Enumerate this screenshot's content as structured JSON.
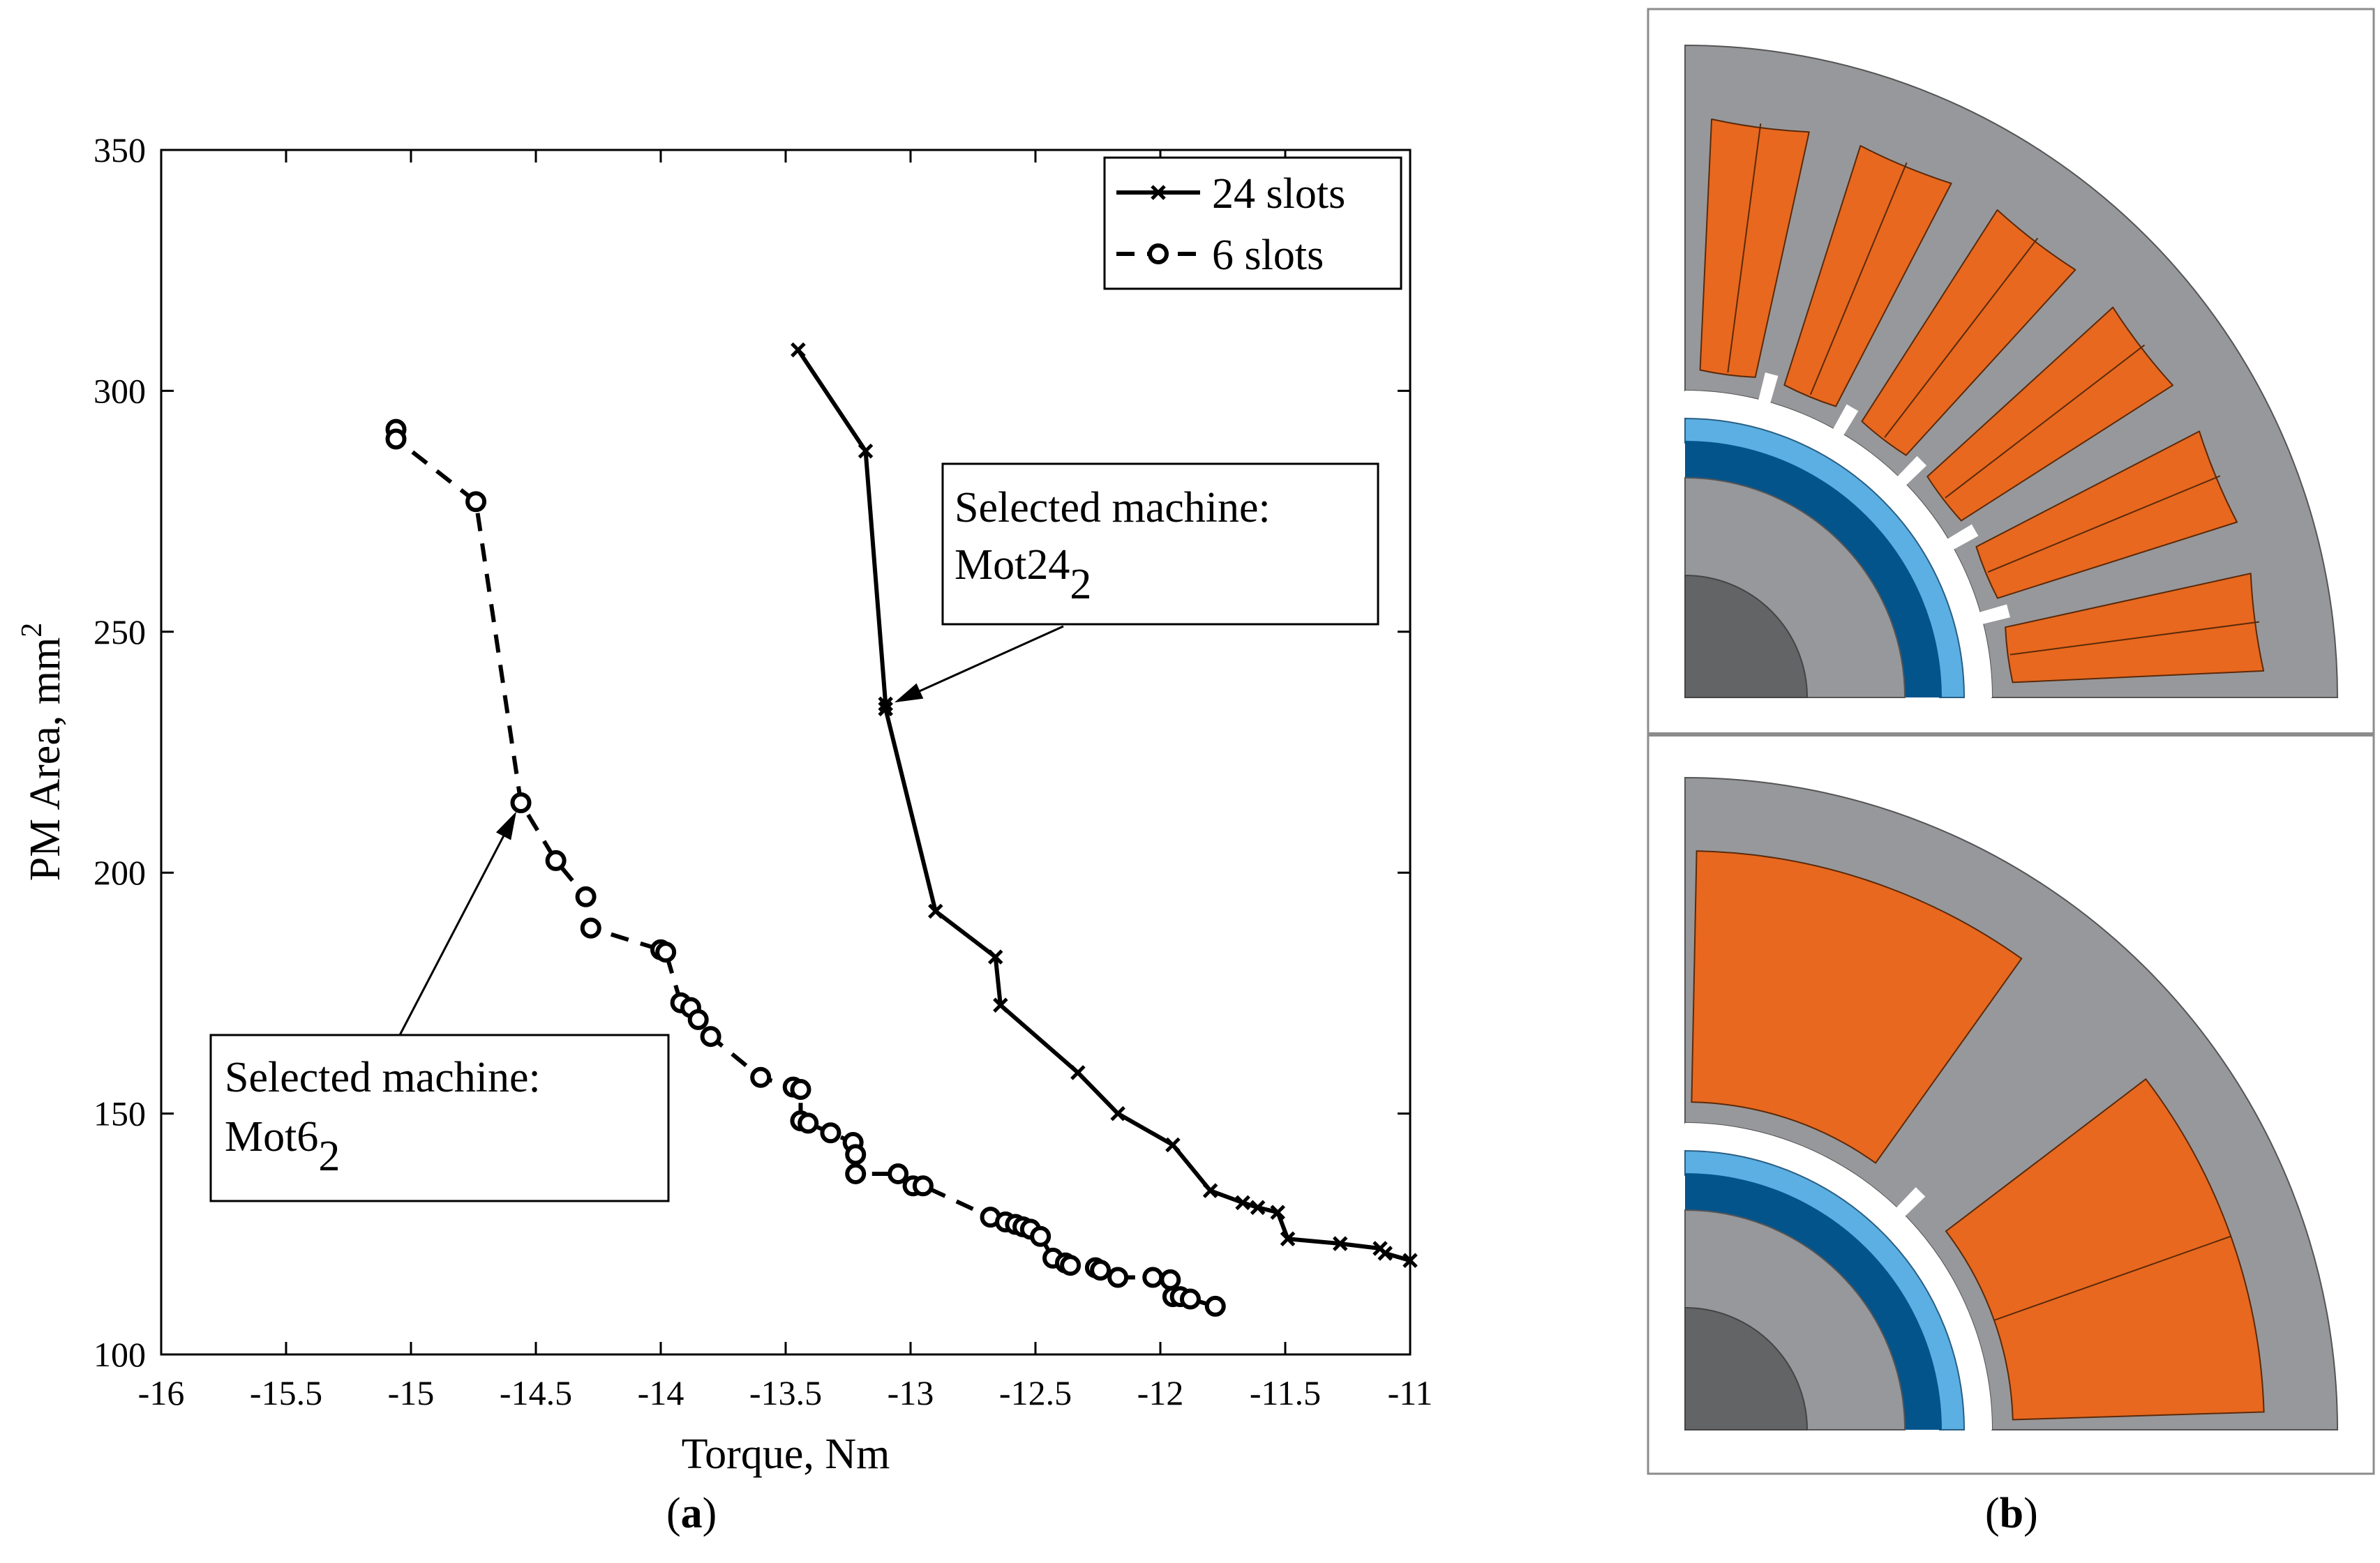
{
  "panels": {
    "a": {
      "label_open": "(",
      "label_letter": "a",
      "label_close": ")"
    },
    "b": {
      "label_open": "(",
      "label_letter": "b",
      "label_close": ")"
    }
  },
  "chart_data": {
    "type": "line",
    "title": "",
    "xlabel": "Torque, Nm",
    "ylabel": "PM Area, mm",
    "ylabel_superscript": "2",
    "xlim": [
      -16,
      -11
    ],
    "ylim": [
      100,
      350
    ],
    "xticks": [
      -16,
      -15.5,
      -15,
      -14.5,
      -14,
      -13.5,
      -13,
      -12.5,
      -12,
      -11.5,
      -11
    ],
    "xtick_labels": [
      "-16",
      "-15.5",
      "-15",
      "-14.5",
      "-14",
      "-13.5",
      "-13",
      "-12.5",
      "-12",
      "-11.5",
      "-11"
    ],
    "yticks": [
      100,
      150,
      200,
      250,
      300,
      350
    ],
    "ytick_labels": [
      "100",
      "150",
      "200",
      "250",
      "300",
      "350"
    ],
    "grid": false,
    "legend_position": "top-right",
    "series": [
      {
        "name": "24 slots",
        "line": "solid",
        "marker": "x",
        "x": [
          -13.45,
          -13.18,
          -13.1,
          -13.1,
          -12.9,
          -12.66,
          -12.64,
          -12.33,
          -12.17,
          -11.95,
          -11.8,
          -11.67,
          -11.61,
          -11.53,
          -11.49,
          -11.28,
          -11.12,
          -11.1,
          -11.0
        ],
        "y": [
          308.5,
          287.5,
          235,
          234,
          192,
          182.5,
          172.5,
          158.5,
          150,
          143.5,
          134,
          131.5,
          130.5,
          129.5,
          124,
          123,
          122,
          121,
          119.5
        ]
      },
      {
        "name": "6 slots",
        "line": "dashed",
        "marker": "o",
        "x": [
          -15.06,
          -15.06,
          -14.74,
          -14.56,
          -14.42,
          -14.3,
          -14.28,
          -14.0,
          -13.98,
          -13.92,
          -13.88,
          -13.85,
          -13.8,
          -13.6,
          -13.47,
          -13.44,
          -13.44,
          -13.41,
          -13.32,
          -13.23,
          -13.22,
          -13.22,
          -13.05,
          -12.99,
          -12.95,
          -12.68,
          -12.62,
          -12.58,
          -12.55,
          -12.52,
          -12.48,
          -12.43,
          -12.38,
          -12.36,
          -12.26,
          -12.24,
          -12.17,
          -12.03,
          -11.96,
          -11.95,
          -11.92,
          -11.88,
          -11.78
        ],
        "y": [
          292,
          290,
          277,
          214.5,
          202.5,
          195,
          188.5,
          184,
          183.5,
          173,
          172,
          169.5,
          166,
          157.5,
          155.5,
          155,
          148.5,
          148,
          146,
          144,
          141.5,
          137.5,
          137.5,
          135,
          135,
          128.5,
          127.5,
          127,
          126.5,
          126,
          124.5,
          120,
          119,
          118.5,
          118,
          117.5,
          116,
          116,
          115.5,
          112,
          112,
          111.5,
          110
        ]
      }
    ],
    "annotations": [
      {
        "line1": "Selected machine:",
        "line2_base": "Mot24",
        "line2_sub": "2",
        "target_x": -13.1,
        "target_y": 234.5
      },
      {
        "line1": "Selected machine:",
        "line2_base": "Mot6",
        "line2_sub": "2",
        "target_x": -14.56,
        "target_y": 214.5
      }
    ]
  },
  "colors": {
    "axes": "#000000",
    "stator_gray": "#97989c",
    "rotor_dark": "#636466",
    "coil_orange": "#e8681f",
    "magnet_dark_blue": "#04548c",
    "sleeve_light_blue": "#5bafe3",
    "frame": "#8c8c8c"
  }
}
